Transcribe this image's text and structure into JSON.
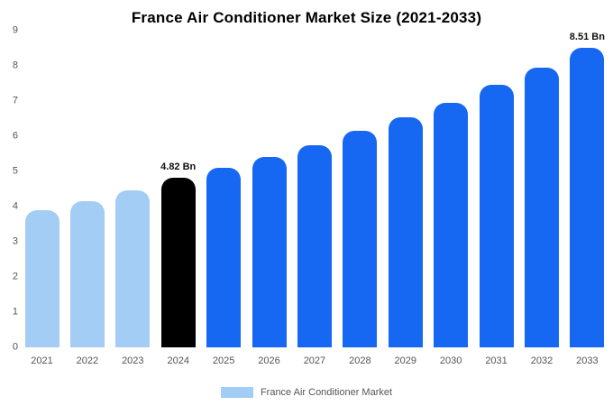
{
  "title": "France Air Conditioner Market Size (2021-2033)",
  "legend": {
    "label": "France Air Conditioner Market",
    "swatch_color": "#a3cdf4"
  },
  "colors": {
    "historical_bar": "#a3cdf4",
    "highlight_bar": "#000000",
    "forecast_bar": "#1667f2",
    "axis_text": "#555555"
  },
  "chart_data": {
    "type": "bar",
    "title": "France Air Conditioner Market Size (2021-2033)",
    "categories": [
      "2021",
      "2022",
      "2023",
      "2024",
      "2025",
      "2026",
      "2027",
      "2028",
      "2029",
      "2030",
      "2031",
      "2032",
      "2033"
    ],
    "values": [
      3.9,
      4.15,
      4.45,
      4.82,
      5.1,
      5.4,
      5.75,
      6.15,
      6.55,
      6.95,
      7.45,
      7.95,
      8.51
    ],
    "bar_colors": [
      "#a3cdf4",
      "#a3cdf4",
      "#a3cdf4",
      "#000000",
      "#1667f2",
      "#1667f2",
      "#1667f2",
      "#1667f2",
      "#1667f2",
      "#1667f2",
      "#1667f2",
      "#1667f2",
      "#1667f2"
    ],
    "data_labels": [
      "",
      "",
      "",
      "4.82 Bn",
      "",
      "",
      "",
      "",
      "",
      "",
      "",
      "",
      "8.51 Bn"
    ],
    "ylim": [
      0,
      9
    ],
    "yticks": [
      0,
      1,
      2,
      3,
      4,
      5,
      6,
      7,
      8,
      9
    ],
    "xlabel": "",
    "ylabel": "",
    "grid": false,
    "legend_entries": [
      "France Air Conditioner Market"
    ],
    "legend_position": "bottom"
  }
}
